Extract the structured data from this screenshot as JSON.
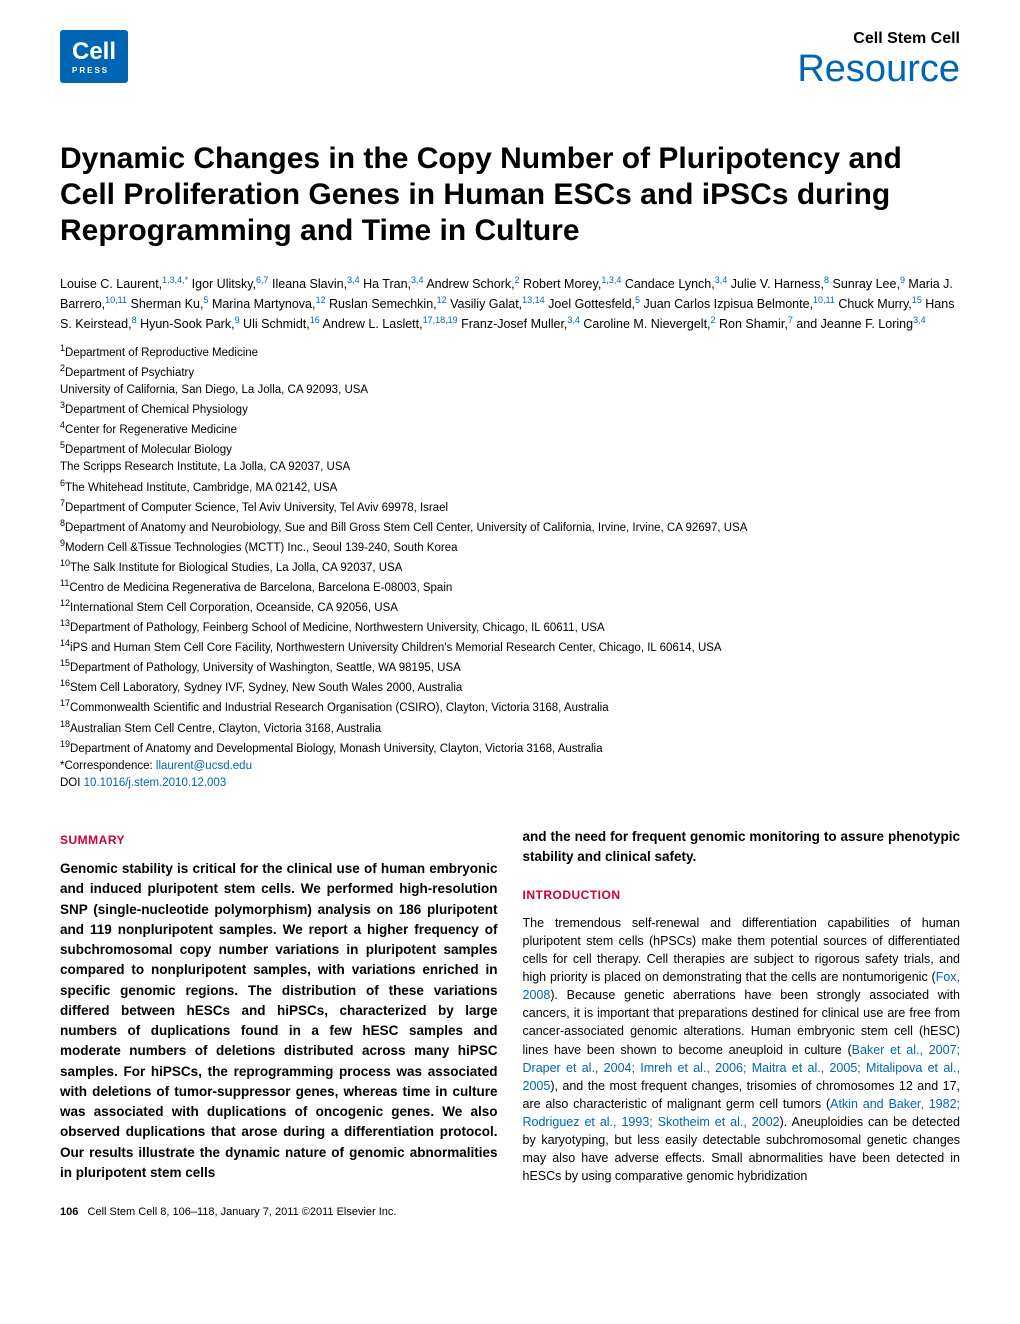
{
  "header": {
    "journal_name": "Cell Stem Cell",
    "article_type": "Resource",
    "logo_main": "Cell",
    "logo_sub": "PRESS"
  },
  "title": "Dynamic Changes in the Copy Number of Pluripotency and Cell Proliferation Genes in Human ESCs and iPSCs during Reprogramming and Time in Culture",
  "authors_html": "Louise C. Laurent,<sup>1,3,4,*</sup> Igor Ulitsky,<sup>6,7</sup> Ileana Slavin,<sup>3,4</sup> Ha Tran,<sup>3,4</sup> Andrew Schork,<sup>2</sup> Robert Morey,<sup>1,3,4</sup> Candace Lynch,<sup>3,4</sup> Julie V. Harness,<sup>8</sup> Sunray Lee,<sup>9</sup> Maria J. Barrero,<sup>10,11</sup> Sherman Ku,<sup>5</sup> Marina Martynova,<sup>12</sup> Ruslan Semechkin,<sup>12</sup> Vasiliy Galat,<sup>13,14</sup> Joel Gottesfeld,<sup>5</sup> Juan Carlos Izpisua Belmonte,<sup>10,11</sup> Chuck Murry,<sup>15</sup> Hans S. Keirstead,<sup>8</sup> Hyun-Sook Park,<sup>9</sup> Uli Schmidt,<sup>16</sup> Andrew L. Laslett,<sup>17,18,19</sup> Franz-Josef Muller,<sup>3,4</sup> Caroline M. Nievergelt,<sup>2</sup> Ron Shamir,<sup>7</sup> and Jeanne F. Loring<sup>3,4</sup>",
  "affiliations": [
    "<sup>1</sup>Department of Reproductive Medicine",
    "<sup>2</sup>Department of Psychiatry",
    "University of California, San Diego, La Jolla, CA 92093, USA",
    "<sup>3</sup>Department of Chemical Physiology",
    "<sup>4</sup>Center for Regenerative Medicine",
    "<sup>5</sup>Department of Molecular Biology",
    "The Scripps Research Institute, La Jolla, CA 92037, USA",
    "<sup>6</sup>The Whitehead Institute, Cambridge, MA 02142, USA",
    "<sup>7</sup>Department of Computer Science, Tel Aviv University, Tel Aviv 69978, Israel",
    "<sup>8</sup>Department of Anatomy and Neurobiology, Sue and Bill Gross Stem Cell Center, University of California, Irvine, Irvine, CA 92697, USA",
    "<sup>9</sup>Modern Cell &Tissue Technologies (MCTT) Inc., Seoul 139-240, South Korea",
    "<sup>10</sup>The Salk Institute for Biological Studies, La Jolla, CA 92037, USA",
    "<sup>11</sup>Centro de Medicina Regenerativa de Barcelona, Barcelona E-08003, Spain",
    "<sup>12</sup>International Stem Cell Corporation, Oceanside, CA 92056, USA",
    "<sup>13</sup>Department of Pathology, Feinberg School of Medicine, Northwestern University, Chicago, IL 60611, USA",
    "<sup>14</sup>iPS and Human Stem Cell Core Facility, Northwestern University Children's Memorial Research Center, Chicago, IL 60614, USA",
    "<sup>15</sup>Department of Pathology, University of Washington, Seattle, WA 98195, USA",
    "<sup>16</sup>Stem Cell Laboratory, Sydney IVF, Sydney, New South Wales 2000, Australia",
    "<sup>17</sup>Commonwealth Scientific and Industrial Research Organisation (CSIRO), Clayton, Victoria 3168, Australia",
    "<sup>18</sup>Australian Stem Cell Centre, Clayton, Victoria 3168, Australia",
    "<sup>19</sup>Department of Anatomy and Developmental Biology, Monash University, Clayton, Victoria 3168, Australia"
  ],
  "correspondence_label": "*Correspondence: ",
  "correspondence_email": "llaurent@ucsd.edu",
  "doi_label": "DOI ",
  "doi": "10.1016/j.stem.2010.12.003",
  "summary_heading": "SUMMARY",
  "summary_text": "Genomic stability is critical for the clinical use of human embryonic and induced pluripotent stem cells. We performed high-resolution SNP (single-nucleotide polymorphism) analysis on 186 pluripotent and 119 nonpluripotent samples. We report a higher frequency of subchromosomal copy number variations in pluripotent samples compared to nonpluripotent samples, with variations enriched in specific genomic regions. The distribution of these variations differed between hESCs and hiPSCs, characterized by large numbers of duplications found in a few hESC samples and moderate numbers of deletions distributed across many hiPSC samples. For hiPSCs, the reprogramming process was associated with deletions of tumor-suppressor genes, whereas time in culture was associated with duplications of oncogenic genes. We also observed duplications that arose during a differentiation protocol. Our results illustrate the dynamic nature of genomic abnormalities in pluripotent stem cells",
  "right_col_continuation": "and the need for frequent genomic monitoring to assure phenotypic stability and clinical safety.",
  "intro_heading": "INTRODUCTION",
  "intro_text": "The tremendous self-renewal and differentiation capabilities of human pluripotent stem cells (hPSCs) make them potential sources of differentiated cells for cell therapy. Cell therapies are subject to rigorous safety trials, and high priority is placed on demonstrating that the cells are nontumorigenic (<span class='citation'>Fox, 2008</span>). Because genetic aberrations have been strongly associated with cancers, it is important that preparations destined for clinical use are free from cancer-associated genomic alterations. Human embryonic stem cell (hESC) lines have been shown to become aneuploid in culture (<span class='citation'>Baker et al., 2007; Draper et al., 2004; Imreh et al., 2006; Maitra et al., 2005; Mitalipova et al., 2005</span>), and the most frequent changes, trisomies of chromosomes 12 and 17, are also characteristic of malignant germ cell tumors (<span class='citation'>Atkin and Baker, 1982; Rodriguez et al., 1993; Skotheim et al., 2002</span>). Aneuploidies can be detected by karyotyping, but less easily detectable subchromosomal genetic changes may also have adverse effects. Small abnormalities have been detected in hESCs by using comparative genomic hybridization",
  "footer": {
    "page_num": "106",
    "citation": "Cell Stem Cell 8, 106–118, January 7, 2011 ©2011 Elsevier Inc."
  },
  "colors": {
    "link_blue": "#0066b3",
    "heading_red": "#cc0033",
    "text_black": "#000000",
    "background": "#ffffff"
  }
}
